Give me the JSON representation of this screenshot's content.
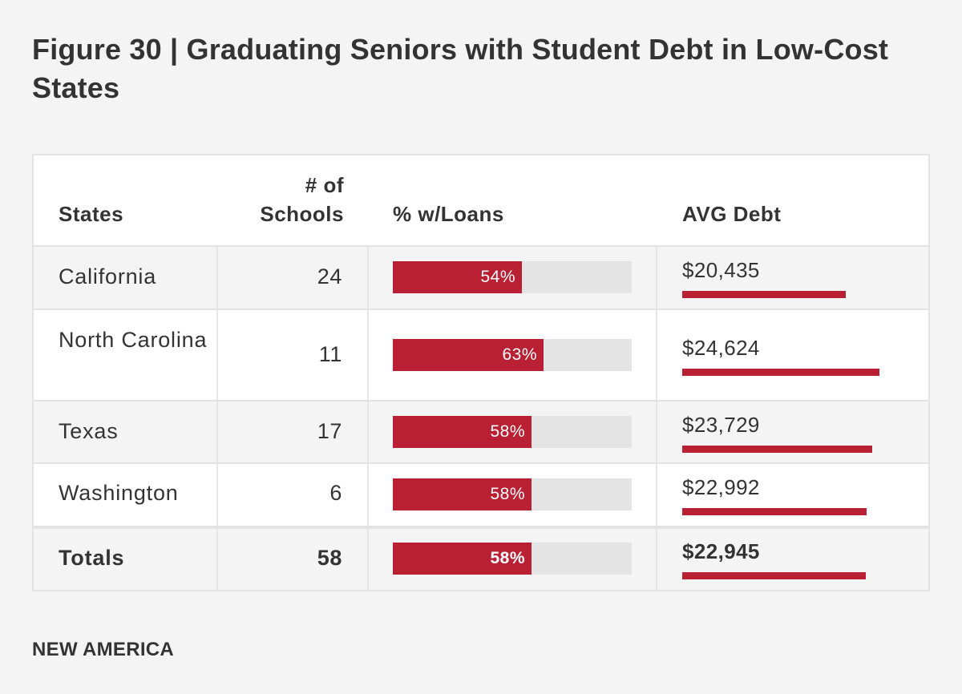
{
  "title": "Figure 30 | Graduating Seniors with Student Debt in Low-Cost States",
  "footer": "NEW AMERICA",
  "colors": {
    "accent": "#b92033",
    "track": "#e4e4e4",
    "text": "#333333",
    "background": "#f4f4f4"
  },
  "chart_data": {
    "type": "table",
    "title": "Figure 30 | Graduating Seniors with Student Debt in Low-Cost States",
    "columns": {
      "states": "States",
      "schools_line1": "# of",
      "schools_line2": "Schools",
      "loans": "% w/Loans",
      "debt": "AVG Debt"
    },
    "rows": [
      {
        "state": "California",
        "schools": "24",
        "pct_label": "54%",
        "pct": 54,
        "debt_label": "$20,435",
        "debt": 20435
      },
      {
        "state": "North Carolina",
        "schools": "11",
        "pct_label": "63%",
        "pct": 63,
        "debt_label": "$24,624",
        "debt": 24624
      },
      {
        "state": "Texas",
        "schools": "17",
        "pct_label": "58%",
        "pct": 58,
        "debt_label": "$23,729",
        "debt": 23729
      },
      {
        "state": "Washington",
        "schools": "6",
        "pct_label": "58%",
        "pct": 58,
        "debt_label": "$22,992",
        "debt": 22992
      }
    ],
    "totals": {
      "state": "Totals",
      "schools": "58",
      "pct_label": "58%",
      "pct": 58,
      "debt_label": "$22,945",
      "debt": 22945
    },
    "pct_max": 100
  }
}
